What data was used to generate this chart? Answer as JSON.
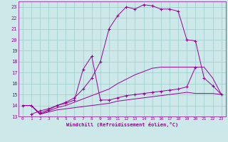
{
  "xlabel": "Windchill (Refroidissement éolien,°C)",
  "bg_color": "#cce8e8",
  "line_color": "#990099",
  "grid_color": "#99cccc",
  "xlim": [
    -0.5,
    23.5
  ],
  "ylim": [
    13,
    23.5
  ],
  "xticks": [
    0,
    1,
    2,
    3,
    4,
    5,
    6,
    7,
    8,
    9,
    10,
    11,
    12,
    13,
    14,
    15,
    16,
    17,
    18,
    19,
    20,
    21,
    22,
    23
  ],
  "yticks": [
    13,
    14,
    15,
    16,
    17,
    18,
    19,
    20,
    21,
    22,
    23
  ],
  "lines": [
    {
      "x": [
        0,
        1,
        2,
        3,
        4,
        5,
        6,
        7,
        8,
        9,
        10,
        11,
        12,
        13,
        14,
        15,
        16,
        17,
        18,
        19,
        20,
        21,
        22,
        23
      ],
      "y": [
        14.0,
        14.0,
        13.2,
        13.4,
        13.6,
        13.7,
        13.8,
        13.9,
        14.0,
        14.1,
        14.2,
        14.4,
        14.5,
        14.6,
        14.7,
        14.8,
        14.9,
        15.0,
        15.1,
        15.2,
        15.1,
        15.1,
        15.1,
        15.0
      ],
      "marker": false
    },
    {
      "x": [
        0,
        1,
        2,
        3,
        4,
        5,
        6,
        7,
        8,
        9,
        10,
        11,
        12,
        13,
        14,
        15,
        16,
        17,
        18,
        19,
        20,
        21,
        22,
        23
      ],
      "y": [
        14.0,
        14.0,
        13.2,
        13.5,
        13.8,
        14.0,
        14.3,
        14.6,
        14.9,
        15.2,
        15.5,
        16.0,
        16.4,
        16.8,
        17.1,
        17.4,
        17.5,
        17.5,
        17.5,
        17.5,
        17.5,
        17.5,
        16.5,
        15.0
      ],
      "marker": false
    },
    {
      "x": [
        1,
        2,
        3,
        4,
        5,
        6,
        7,
        8,
        9,
        10,
        11,
        12,
        13,
        14,
        15,
        16,
        17,
        18,
        19,
        20
      ],
      "y": [
        13.2,
        13.5,
        13.7,
        14.0,
        14.2,
        14.5,
        17.3,
        18.5,
        14.5,
        14.5,
        14.7,
        14.9,
        15.0,
        15.1,
        15.2,
        15.3,
        15.4,
        15.5,
        15.7,
        17.5
      ],
      "marker": true
    },
    {
      "x": [
        0,
        1,
        2,
        3,
        4,
        5,
        6,
        7,
        8,
        9,
        10,
        11,
        12,
        13,
        14,
        15,
        16,
        17,
        18,
        19,
        20,
        21,
        22,
        23
      ],
      "y": [
        14.0,
        14.0,
        13.3,
        13.6,
        14.0,
        14.3,
        14.7,
        15.5,
        16.5,
        18.0,
        21.0,
        22.2,
        23.0,
        22.8,
        23.2,
        23.1,
        22.8,
        22.8,
        22.6,
        20.0,
        19.9,
        16.5,
        15.8,
        15.0
      ],
      "marker": true
    }
  ]
}
